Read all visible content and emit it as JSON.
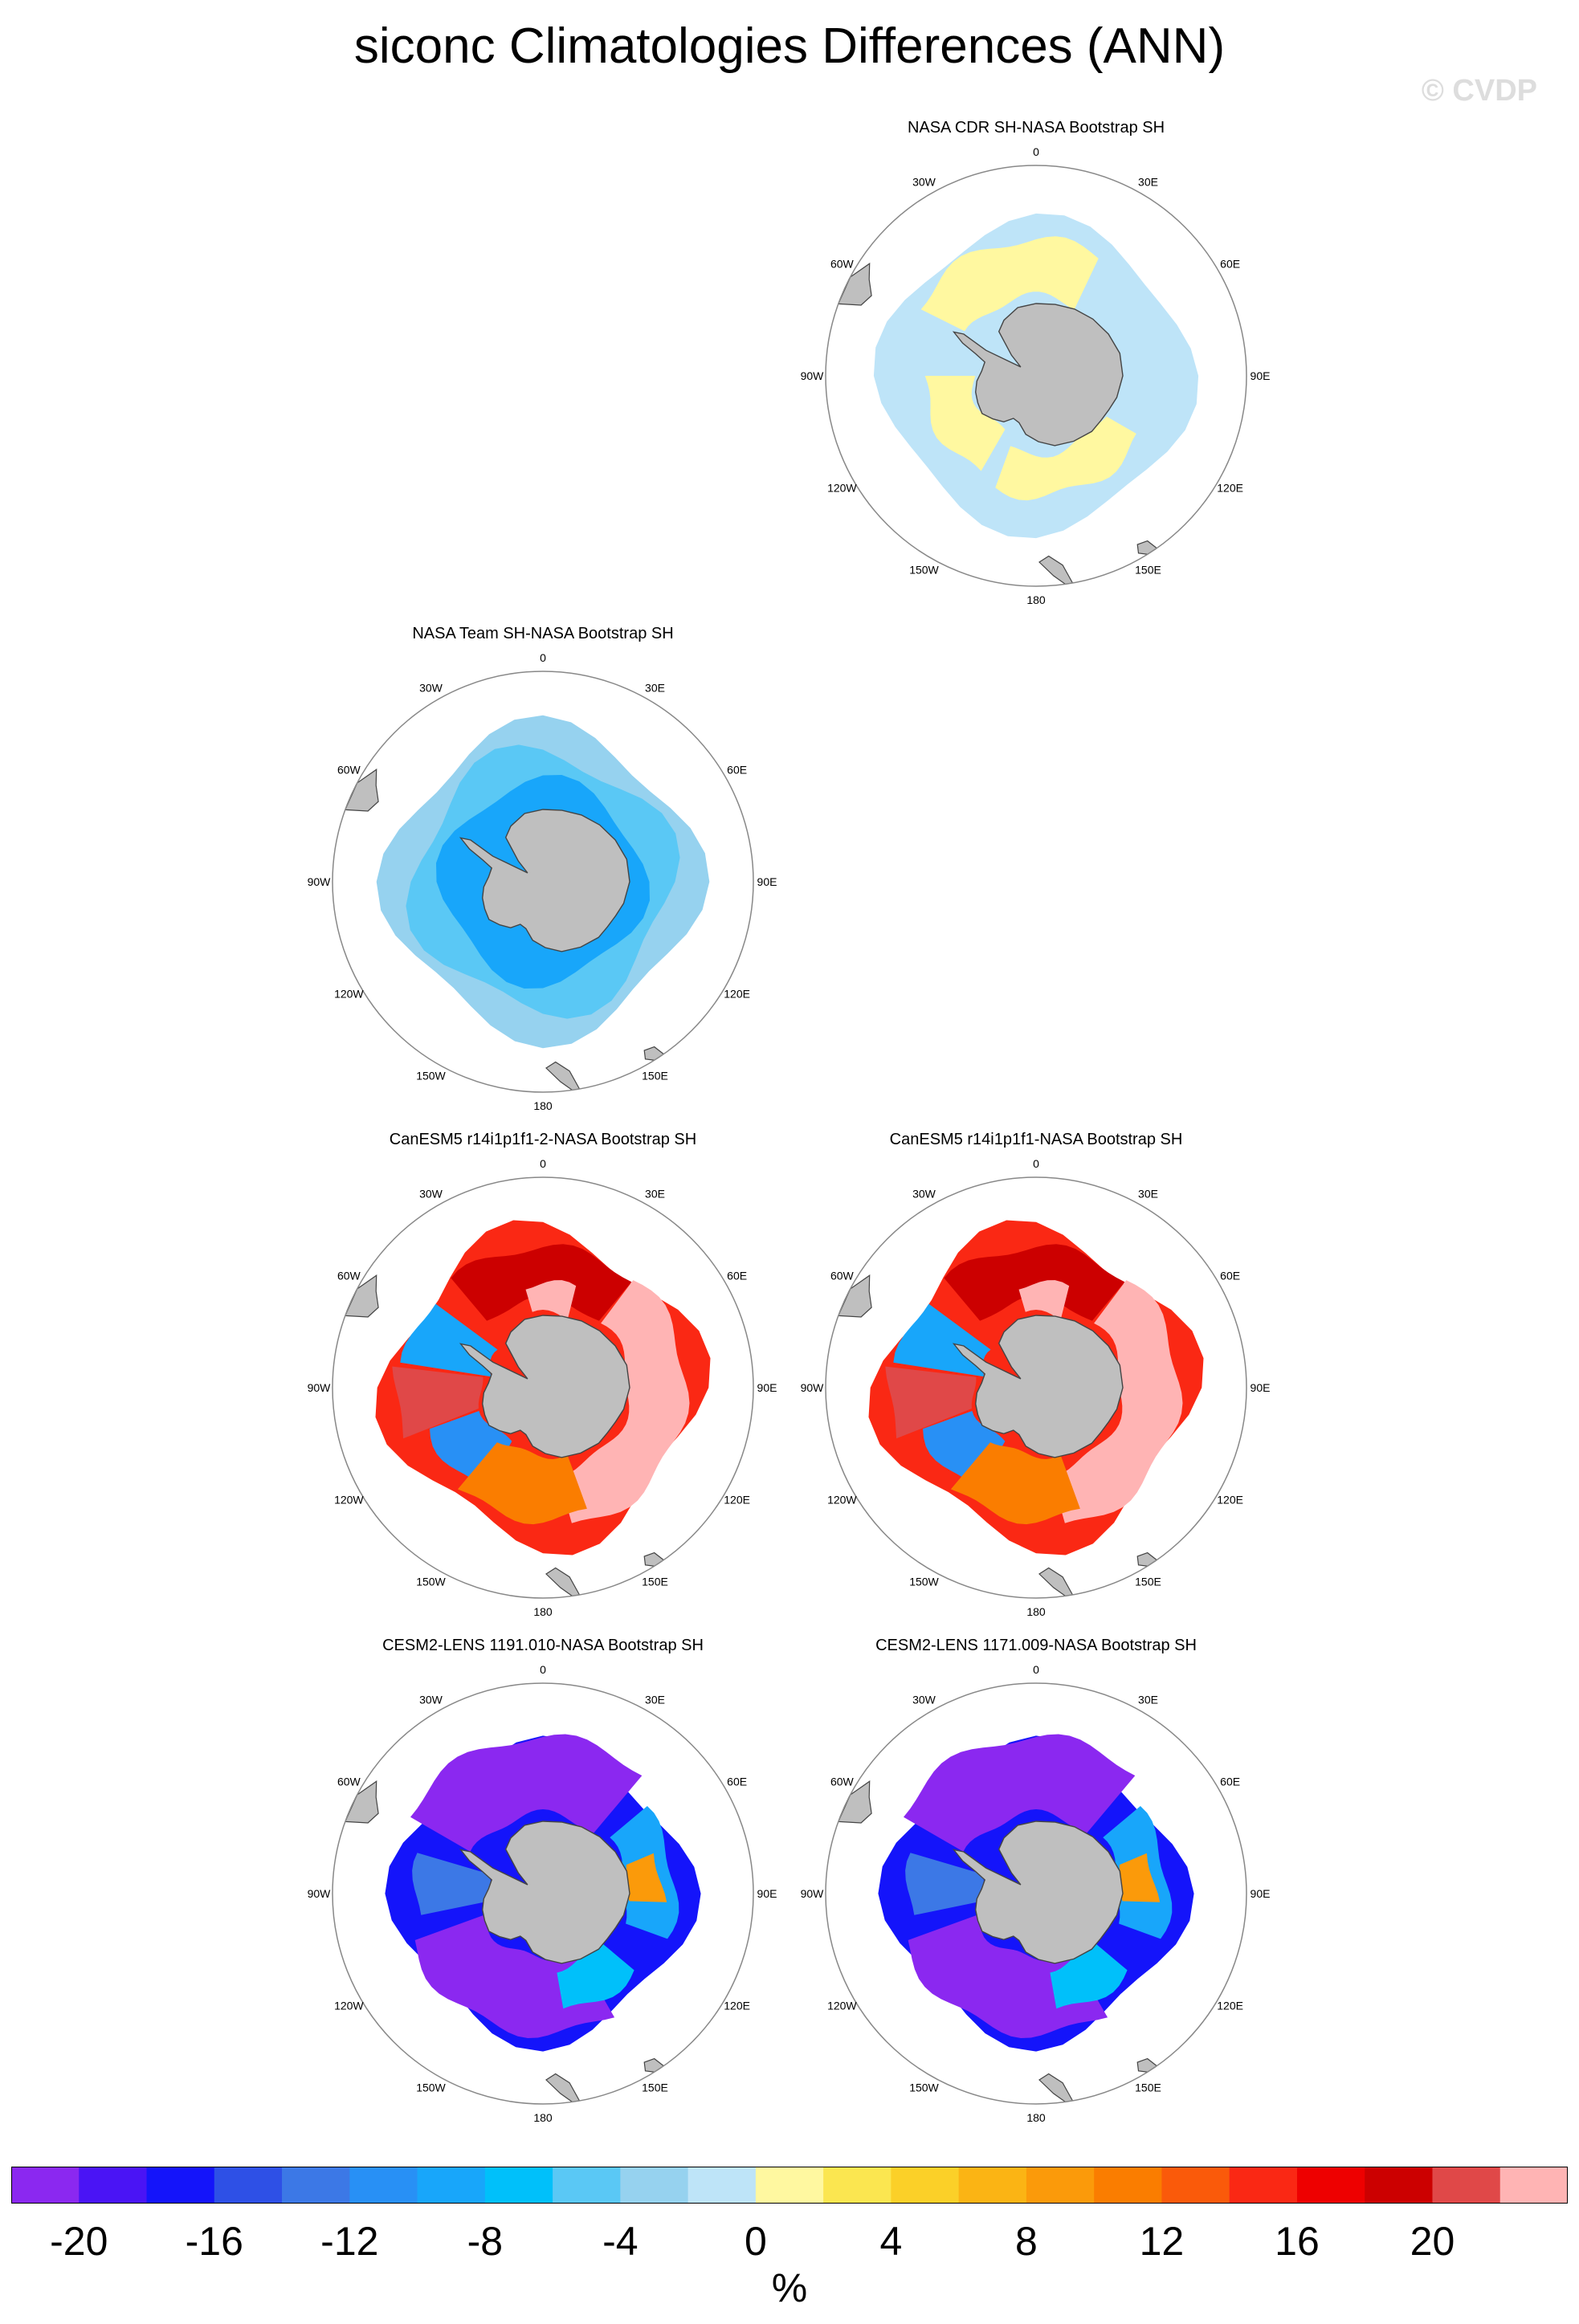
{
  "title": "siconc Climatologies Differences (ANN)",
  "watermark": "© CVDP",
  "longitude_labels": {
    "lon0": "0",
    "lon30e": "30E",
    "lon60e": "60E",
    "lon90e": "90E",
    "lon120e": "120E",
    "lon150e": "150E",
    "lon180": "180",
    "lon150w": "150W",
    "lon120w": "120W",
    "lon90w": "90W",
    "lon60w": "60W",
    "lon30w": "30W"
  },
  "panels": [
    {
      "title": "NASA CDR SH-NASA Bootstrap SH",
      "pattern": "cdr"
    },
    {
      "title": "NASA Team SH-NASA Bootstrap SH",
      "pattern": "team"
    },
    {
      "title": "CanESM5 r14i1p1f1-2-NASA Bootstrap SH",
      "pattern": "canesm"
    },
    {
      "title": "CanESM5 r14i1p1f1-NASA Bootstrap SH",
      "pattern": "canesm"
    },
    {
      "title": "CESM2-LENS 1191.010-NASA Bootstrap SH",
      "pattern": "cesm"
    },
    {
      "title": "CESM2-LENS 1171.009-NASA Bootstrap SH",
      "pattern": "cesm"
    }
  ],
  "colorbar": {
    "colors": [
      "#8b28f0",
      "#4a14f5",
      "#1414fa",
      "#2e50e6",
      "#3c78e6",
      "#2890f5",
      "#18a6fa",
      "#00c0fa",
      "#5ac8f5",
      "#96d2ef",
      "#bee4f8",
      "#fff8a0",
      "#fbe650",
      "#fbd028",
      "#fbb414",
      "#fb9a0a",
      "#fa7d00",
      "#fa5a0a",
      "#fa2814",
      "#ee0000",
      "#cc0000",
      "#e04848",
      "#ffb4b4"
    ],
    "tick_labels": [
      "-20",
      "-16",
      "-12",
      "-8",
      "-4",
      "0",
      "4",
      "8",
      "12",
      "16",
      "20"
    ],
    "units": "%"
  },
  "colors": {
    "land": "#bfbfbf",
    "coast": "#444444",
    "map_outline": "#888888"
  }
}
